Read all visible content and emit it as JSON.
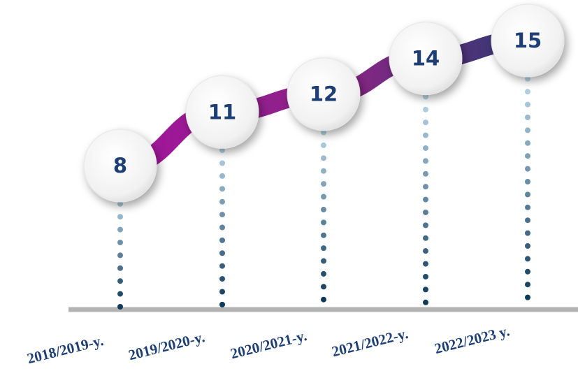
{
  "chart_data": {
    "type": "line",
    "categories": [
      "2018/2019-y.",
      "2019/2020-y.",
      "2020/2021-y.",
      "2021/2022-y.",
      "2022/2023 y."
    ],
    "values": [
      8,
      11,
      12,
      14,
      15
    ],
    "colors": {
      "line_start": "#a3149c",
      "line_mid": "#8a2585",
      "line_end": "#2e3a72",
      "value_text": "#1d3f75",
      "label_text": "#1d3f75",
      "axis": "#b3b3b3",
      "dot_dark": "#0f3a5a",
      "dot_light": "#cfe9f9"
    },
    "grid": false,
    "legend": "none"
  }
}
